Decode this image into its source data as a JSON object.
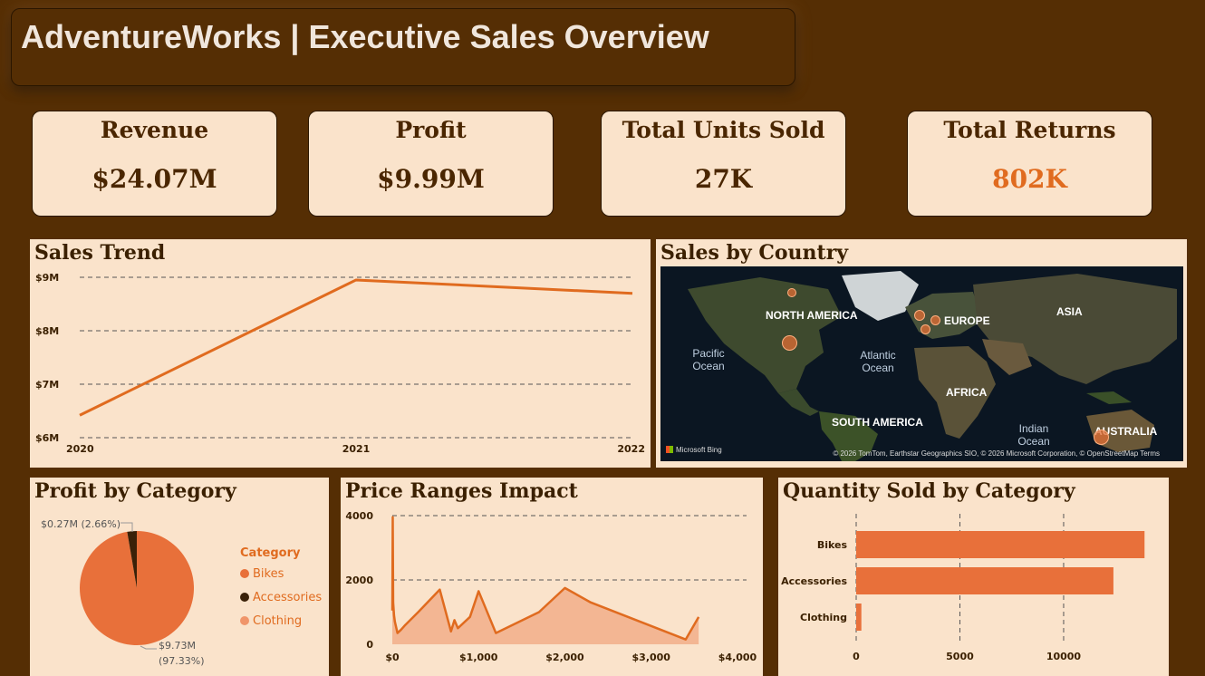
{
  "header": {
    "title": "AdventureWorks | Executive Sales Overview"
  },
  "kpis": [
    {
      "label": "Revenue",
      "value": "$24.07M"
    },
    {
      "label": "Profit",
      "value": "$9.99M"
    },
    {
      "label": "Total Units Sold",
      "value": "27K"
    },
    {
      "label": "Total Returns",
      "value": "802K"
    }
  ],
  "colors": {
    "background": "#552e04",
    "panel": "#fae3cb",
    "accent": "#e06b1f",
    "dark": "#3b2000"
  },
  "sales_trend": {
    "title": "Sales Trend",
    "chart_data": {
      "type": "line",
      "x": [
        "2020",
        "2021",
        "2022"
      ],
      "values": [
        6.42,
        8.95,
        8.7
      ],
      "yticks": [
        "$6M",
        "$7M",
        "$8M",
        "$9M"
      ],
      "ylim": [
        6,
        9
      ],
      "grid": true
    }
  },
  "map": {
    "title": "Sales by Country",
    "labels": {
      "north_america": "NORTH AMERICA",
      "europe": "EUROPE",
      "asia": "ASIA",
      "africa": "AFRICA",
      "south_america": "SOUTH AMERICA",
      "australia": "AUSTRALIA"
    },
    "oceans": {
      "pacific": "Pacific Ocean",
      "atlantic": "Atlantic Ocean",
      "indian": "Indian Ocean"
    },
    "attribution": "© 2026 TomTom, Earthstar Geographics SIO, © 2026 Microsoft Corporation, © OpenStreetMap  Terms",
    "provider": "Microsoft Bing"
  },
  "profit_by_category": {
    "title": "Profit by Category",
    "legend_title": "Category",
    "chart_data": {
      "type": "pie",
      "categories": [
        "Bikes",
        "Accessories",
        "Clothing"
      ],
      "values": [
        9.73,
        0.27,
        0.0
      ],
      "colors": [
        "#e8703a",
        "#3a2108",
        "#f0956a"
      ],
      "labels": [
        "$9.73M",
        "(97.33%)",
        "$0.27M (2.66%)"
      ]
    }
  },
  "price_ranges": {
    "title": "Price Ranges Impact",
    "chart_data": {
      "type": "area",
      "x": [
        0,
        5,
        10,
        20,
        30,
        60,
        100,
        150,
        300,
        550,
        680,
        720,
        760,
        900,
        1000,
        1200,
        1700,
        2000,
        2300,
        3400,
        3550
      ],
      "values": [
        1050,
        3950,
        1300,
        900,
        700,
        350,
        450,
        600,
        1000,
        1700,
        400,
        750,
        500,
        850,
        1650,
        350,
        1000,
        1750,
        1300,
        150,
        850
      ],
      "xticks": [
        "$0",
        "$1,000",
        "$2,000",
        "$3,000",
        "$4,000"
      ],
      "yticks": [
        "0",
        "2000",
        "4000"
      ],
      "xlim": [
        0,
        4000
      ],
      "ylim": [
        0,
        4000
      ]
    }
  },
  "quantity_by_category": {
    "title": "Quantity Sold by Category",
    "chart_data": {
      "type": "bar",
      "categories": [
        "Bikes",
        "Accessories",
        "Clothing"
      ],
      "values": [
        13900,
        12400,
        250
      ],
      "xticks": [
        "0",
        "5000",
        "10000"
      ],
      "xlim": [
        0,
        14500
      ]
    }
  }
}
